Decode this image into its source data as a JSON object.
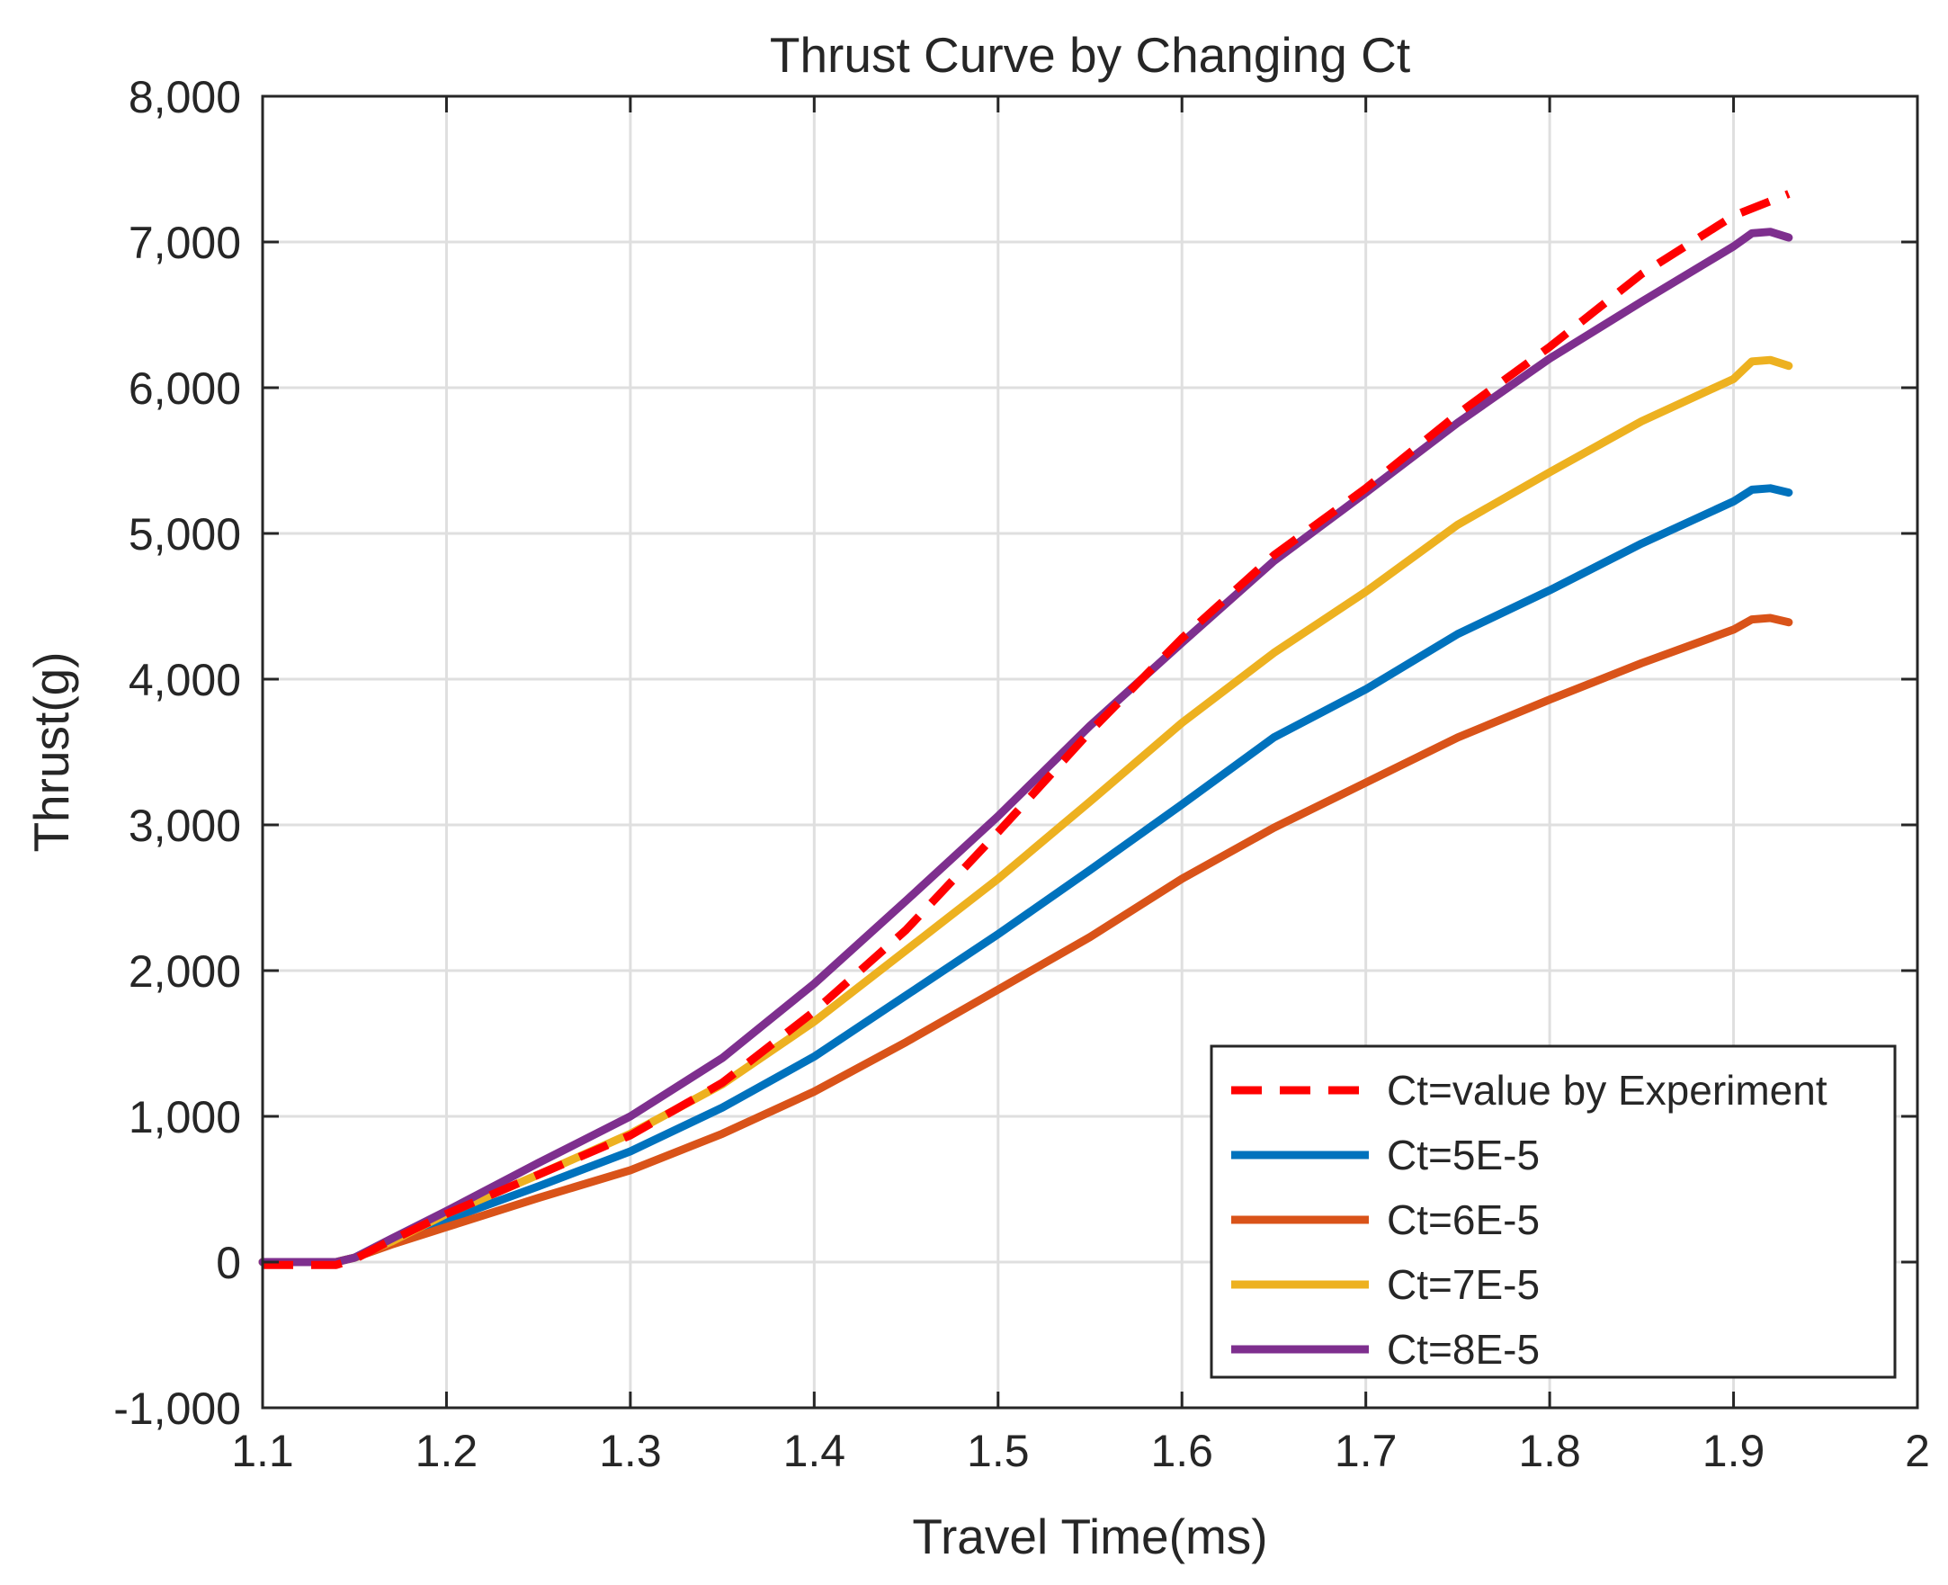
{
  "chart_data": {
    "type": "line",
    "title": "Thrust Curve by Changing Ct",
    "xlabel": "Travel Time(ms)",
    "ylabel": "Thrust(g)",
    "xlim": [
      1.1,
      2.0
    ],
    "ylim": [
      -1000,
      8000
    ],
    "xticks": [
      1.1,
      1.2,
      1.3,
      1.4,
      1.5,
      1.6,
      1.7,
      1.8,
      1.9,
      2.0
    ],
    "xtick_labels": [
      "1.1",
      "1.2",
      "1.3",
      "1.4",
      "1.5",
      "1.6",
      "1.7",
      "1.8",
      "1.9",
      "2"
    ],
    "yticks": [
      -1000,
      0,
      1000,
      2000,
      3000,
      4000,
      5000,
      6000,
      7000,
      8000
    ],
    "ytick_labels": [
      "-1,000",
      "0",
      "1,000",
      "2,000",
      "3,000",
      "4,000",
      "5,000",
      "6,000",
      "7,000",
      "8,000"
    ],
    "grid": true,
    "legend_position": "bottom-right",
    "series": [
      {
        "name": "Ct=value by Experiment",
        "color": "#ff0000",
        "style": "dashed",
        "x": [
          1.1,
          1.14,
          1.15,
          1.17,
          1.2,
          1.25,
          1.3,
          1.35,
          1.4,
          1.45,
          1.5,
          1.55,
          1.6,
          1.65,
          1.7,
          1.75,
          1.8,
          1.85,
          1.9,
          1.93
        ],
        "y": [
          -20,
          -20,
          20,
          150,
          330,
          600,
          870,
          1230,
          1720,
          2280,
          2950,
          3640,
          4280,
          4850,
          5310,
          5820,
          6280,
          6780,
          7180,
          7330
        ]
      },
      {
        "name": "Ct=5E-5",
        "color": "#0072bd",
        "style": "solid",
        "x": [
          1.1,
          1.14,
          1.15,
          1.17,
          1.2,
          1.25,
          1.3,
          1.35,
          1.4,
          1.45,
          1.5,
          1.55,
          1.6,
          1.65,
          1.7,
          1.75,
          1.8,
          1.85,
          1.9,
          1.91,
          1.92,
          1.93
        ],
        "y": [
          0,
          0,
          30,
          130,
          290,
          520,
          760,
          1060,
          1410,
          1830,
          2250,
          2690,
          3140,
          3600,
          3930,
          4310,
          4610,
          4930,
          5220,
          5300,
          5310,
          5280
        ]
      },
      {
        "name": "Ct=6E-5",
        "color": "#d95319",
        "style": "solid",
        "x": [
          1.1,
          1.14,
          1.15,
          1.17,
          1.2,
          1.25,
          1.3,
          1.35,
          1.4,
          1.45,
          1.5,
          1.55,
          1.6,
          1.65,
          1.7,
          1.75,
          1.8,
          1.85,
          1.9,
          1.91,
          1.92,
          1.93
        ],
        "y": [
          0,
          0,
          30,
          120,
          240,
          440,
          630,
          880,
          1170,
          1510,
          1870,
          2230,
          2630,
          2980,
          3290,
          3600,
          3860,
          4110,
          4340,
          4410,
          4420,
          4390
        ]
      },
      {
        "name": "Ct=7E-5",
        "color": "#edb120",
        "style": "solid",
        "x": [
          1.1,
          1.14,
          1.15,
          1.17,
          1.2,
          1.25,
          1.3,
          1.35,
          1.4,
          1.45,
          1.5,
          1.55,
          1.6,
          1.65,
          1.7,
          1.75,
          1.8,
          1.85,
          1.9,
          1.91,
          1.92,
          1.93
        ],
        "y": [
          0,
          0,
          30,
          140,
          330,
          600,
          880,
          1220,
          1650,
          2140,
          2630,
          3160,
          3700,
          4180,
          4600,
          5060,
          5420,
          5770,
          6060,
          6180,
          6190,
          6150
        ]
      },
      {
        "name": "Ct=8E-5",
        "color": "#7e2f8e",
        "style": "solid",
        "x": [
          1.1,
          1.14,
          1.15,
          1.17,
          1.2,
          1.25,
          1.3,
          1.35,
          1.4,
          1.45,
          1.5,
          1.55,
          1.6,
          1.65,
          1.7,
          1.75,
          1.8,
          1.85,
          1.9,
          1.91,
          1.92,
          1.93
        ],
        "y": [
          0,
          0,
          30,
          160,
          350,
          680,
          1000,
          1400,
          1910,
          2480,
          3060,
          3680,
          4250,
          4810,
          5280,
          5760,
          6200,
          6590,
          6970,
          7060,
          7070,
          7030
        ]
      }
    ]
  }
}
